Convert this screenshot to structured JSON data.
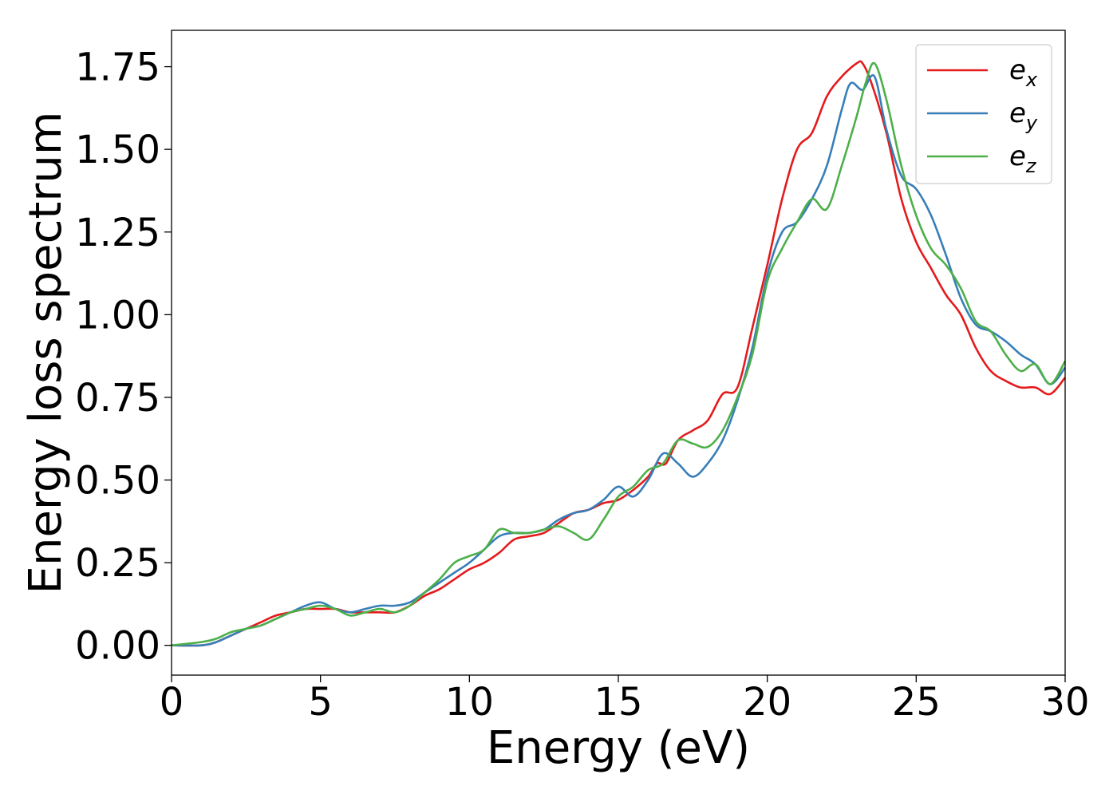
{
  "chart_data": {
    "type": "line",
    "xlabel": "Energy (eV)",
    "ylabel": "Energy loss spectrum",
    "xlim": [
      0,
      30
    ],
    "ylim": [
      -0.09,
      1.86
    ],
    "xticks": [
      0,
      5,
      10,
      15,
      20,
      25,
      30
    ],
    "xtick_labels": [
      "0",
      "5",
      "10",
      "15",
      "20",
      "25",
      "30"
    ],
    "yticks": [
      0.0,
      0.25,
      0.5,
      0.75,
      1.0,
      1.25,
      1.5,
      1.75
    ],
    "ytick_labels": [
      "0.00",
      "0.25",
      "0.50",
      "0.75",
      "1.00",
      "1.25",
      "1.50",
      "1.75"
    ],
    "grid": false,
    "legend": "top-right",
    "series": [
      {
        "name": "e_x",
        "label_base": "e",
        "label_sub": "x",
        "color": "#e41a1c",
        "x": [
          0,
          1,
          1.5,
          2,
          2.5,
          3,
          3.5,
          4,
          4.5,
          5,
          5.5,
          6,
          6.5,
          7,
          7.5,
          8,
          8.5,
          9,
          9.5,
          10,
          10.5,
          11,
          11.5,
          12,
          12.5,
          13,
          13.5,
          14,
          14.5,
          15,
          15.5,
          16,
          16.3,
          16.6,
          17,
          17.5,
          18,
          18.5,
          19,
          19.5,
          20,
          20.5,
          21,
          21.5,
          22,
          22.5,
          23,
          23.2,
          23.5,
          24,
          24.5,
          25,
          25.5,
          26,
          26.5,
          27,
          27.5,
          28,
          28.5,
          29,
          29.5,
          30
        ],
        "y": [
          0,
          0,
          0.01,
          0.03,
          0.05,
          0.07,
          0.09,
          0.1,
          0.11,
          0.11,
          0.11,
          0.1,
          0.1,
          0.1,
          0.1,
          0.12,
          0.15,
          0.17,
          0.2,
          0.23,
          0.25,
          0.28,
          0.32,
          0.33,
          0.34,
          0.37,
          0.4,
          0.41,
          0.43,
          0.44,
          0.47,
          0.51,
          0.55,
          0.55,
          0.62,
          0.65,
          0.68,
          0.76,
          0.78,
          0.96,
          1.15,
          1.35,
          1.5,
          1.55,
          1.66,
          1.72,
          1.76,
          1.76,
          1.7,
          1.55,
          1.35,
          1.22,
          1.14,
          1.06,
          1.0,
          0.9,
          0.83,
          0.8,
          0.78,
          0.78,
          0.76,
          0.81
        ]
      },
      {
        "name": "e_y",
        "label_base": "e",
        "label_sub": "y",
        "color": "#377eb8",
        "x": [
          0,
          1,
          1.5,
          2,
          2.5,
          3,
          3.5,
          4,
          4.5,
          5,
          5.5,
          6,
          6.5,
          7,
          7.5,
          8,
          8.5,
          9,
          9.5,
          10,
          10.5,
          11,
          11.5,
          12,
          12.5,
          13,
          13.5,
          14,
          14.5,
          15,
          15.5,
          16,
          16.5,
          17,
          17.5,
          18,
          18.5,
          19,
          19.5,
          20,
          20.5,
          21,
          21.5,
          22,
          22.5,
          22.8,
          23.2,
          23.6,
          24,
          24.5,
          25,
          25.5,
          26,
          26.5,
          27,
          27.5,
          28,
          28.5,
          29,
          29.5,
          30
        ],
        "y": [
          0,
          0,
          0.01,
          0.03,
          0.05,
          0.06,
          0.08,
          0.1,
          0.12,
          0.13,
          0.11,
          0.1,
          0.11,
          0.12,
          0.12,
          0.13,
          0.16,
          0.19,
          0.22,
          0.25,
          0.29,
          0.33,
          0.34,
          0.34,
          0.35,
          0.38,
          0.4,
          0.41,
          0.44,
          0.48,
          0.45,
          0.5,
          0.58,
          0.55,
          0.51,
          0.55,
          0.62,
          0.74,
          0.9,
          1.12,
          1.25,
          1.28,
          1.35,
          1.45,
          1.62,
          1.7,
          1.68,
          1.72,
          1.56,
          1.42,
          1.38,
          1.3,
          1.18,
          1.05,
          0.97,
          0.95,
          0.92,
          0.88,
          0.85,
          0.79,
          0.84
        ]
      },
      {
        "name": "e_z",
        "label_base": "e",
        "label_sub": "z",
        "color": "#4daf4a",
        "x": [
          0,
          1,
          1.5,
          2,
          2.5,
          3,
          3.5,
          4,
          4.5,
          5,
          5.5,
          6,
          6.5,
          7,
          7.5,
          8,
          8.5,
          9,
          9.5,
          10,
          10.5,
          11,
          11.5,
          12,
          12.5,
          13,
          13.5,
          14,
          14.5,
          15,
          15.5,
          16,
          16.5,
          17,
          17.5,
          18,
          18.5,
          19,
          19.5,
          20,
          20.5,
          21,
          21.5,
          22,
          22.5,
          23,
          23.3,
          23.6,
          24,
          24.5,
          25,
          25.5,
          26,
          26.5,
          27,
          27.5,
          28,
          28.5,
          29,
          29.5,
          30
        ],
        "y": [
          0,
          0.01,
          0.02,
          0.04,
          0.05,
          0.06,
          0.08,
          0.1,
          0.11,
          0.12,
          0.11,
          0.09,
          0.1,
          0.11,
          0.1,
          0.12,
          0.16,
          0.2,
          0.25,
          0.27,
          0.29,
          0.35,
          0.34,
          0.34,
          0.35,
          0.36,
          0.34,
          0.32,
          0.38,
          0.45,
          0.48,
          0.53,
          0.55,
          0.62,
          0.61,
          0.6,
          0.65,
          0.75,
          0.88,
          1.1,
          1.2,
          1.28,
          1.35,
          1.32,
          1.45,
          1.6,
          1.7,
          1.76,
          1.65,
          1.45,
          1.3,
          1.2,
          1.15,
          1.08,
          0.98,
          0.95,
          0.88,
          0.83,
          0.85,
          0.79,
          0.86
        ]
      }
    ]
  }
}
